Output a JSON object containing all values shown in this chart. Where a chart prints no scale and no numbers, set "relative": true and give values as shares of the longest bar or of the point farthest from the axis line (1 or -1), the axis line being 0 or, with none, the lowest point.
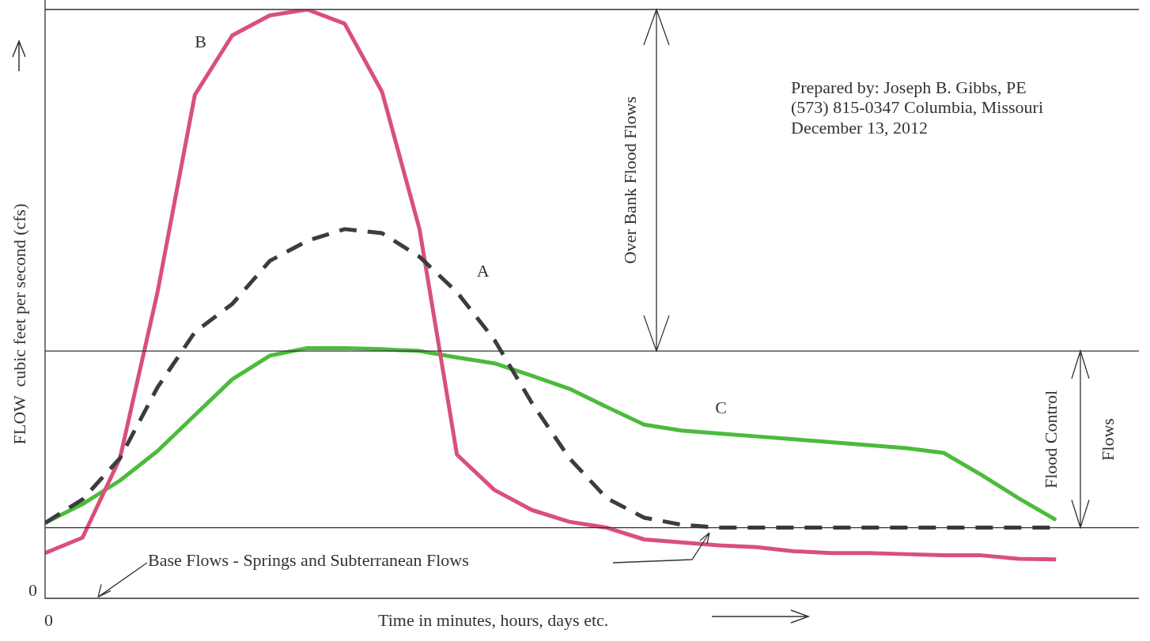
{
  "chart_data": {
    "type": "line",
    "relative": true,
    "marker": "none",
    "xlabel": "Time in minutes, hours, days etc.",
    "ylabel": "FLOW  cubic feet per second (cfs)",
    "categories": [
      null,
      null,
      null,
      null,
      null,
      null,
      null,
      null,
      null,
      null,
      null,
      null,
      null,
      null,
      null,
      null,
      null,
      null,
      null,
      null,
      null,
      null,
      null,
      null,
      null,
      null,
      null,
      null
    ],
    "series": [
      {
        "name": "A",
        "color": "#3a3d3d",
        "line_style": "dashed",
        "values": [
          0.128,
          0.168,
          0.238,
          0.358,
          0.452,
          0.5,
          0.573,
          0.607,
          0.627,
          0.62,
          0.58,
          0.52,
          0.439,
          0.332,
          0.238,
          0.17,
          0.137,
          0.125,
          0.12,
          0.12,
          0.12,
          0.12,
          0.12,
          0.12,
          0.12,
          0.12,
          0.12,
          0.12
        ]
      },
      {
        "name": "B",
        "color": "#d9507a",
        "line_style": "solid",
        "values": [
          0.077,
          0.103,
          0.238,
          0.519,
          0.855,
          0.956,
          0.99,
          1,
          0.976,
          0.86,
          0.627,
          0.244,
          0.184,
          0.15,
          0.13,
          0.12,
          0.1,
          0.095,
          0.09,
          0.087,
          0.08,
          0.077,
          0.077,
          0.075,
          0.073,
          0.073,
          0.067,
          0.066
        ]
      },
      {
        "name": "C",
        "color": "#4cbb3c",
        "line_style": "solid",
        "values": [
          0.128,
          0.16,
          0.2,
          0.25,
          0.311,
          0.372,
          0.412,
          0.425,
          0.425,
          0.423,
          0.42,
          0.409,
          0.399,
          0.378,
          0.356,
          0.325,
          0.295,
          0.285,
          0.28,
          0.275,
          0.27,
          0.265,
          0.26,
          0.255,
          0.247,
          0.21,
          0.17,
          0.133
        ]
      }
    ],
    "ref_lines": [
      {
        "axis": "y",
        "value": 1,
        "color": "#333333"
      },
      {
        "axis": "y",
        "value": 0.42,
        "color": "#333333"
      },
      {
        "axis": "y",
        "value": 0.12,
        "color": "#333333"
      }
    ],
    "annotations": [
      "Prepared by: Joseph B. Gibbs, PE\n(573) 815-0347 Columbia, Missouri\nDecember 13, 2012",
      "0",
      "0",
      "Over Bank Flood Flows",
      "Flood Control\nFlows",
      "Base Flows - Springs and Subterranean Flows"
    ]
  }
}
